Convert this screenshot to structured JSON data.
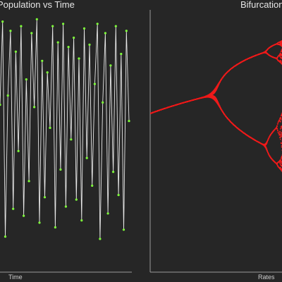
{
  "colors": {
    "background": "#262626",
    "series_line": "#e8e8e8",
    "series_point": "#7fff3a",
    "bifurcation": "#ee1c1c",
    "axis": "#9a9a9a",
    "text": "#e6e6e6"
  },
  "chart_data": [
    {
      "type": "line",
      "title": "Population vs Time",
      "xlabel": "Time",
      "ylabel": "",
      "grid": false,
      "legend": "none",
      "ylim": [
        0,
        1
      ],
      "series": [
        {
          "values": [
            0.62,
            0.98,
            0.05,
            0.66,
            0.94,
            0.17,
            0.85,
            0.42,
            0.96,
            0.14,
            0.73,
            0.29,
            0.93,
            0.61,
            0.99,
            0.11,
            0.81,
            0.22,
            0.76,
            0.52,
            0.96,
            0.09,
            0.89,
            0.34,
            0.97,
            0.18,
            0.87,
            0.47,
            0.91,
            0.21,
            0.82,
            0.12,
            0.95,
            0.39,
            0.88,
            0.27,
            0.71,
            0.97,
            0.04,
            0.63,
            0.93,
            0.15,
            0.79,
            0.33,
            0.96,
            0.23,
            0.84,
            0.08,
            0.94,
            0.55
          ]
        }
      ]
    },
    {
      "type": "scatter",
      "title": "Bifurcation Diagram",
      "xlabel": "Rates",
      "ylabel": "",
      "grid": false,
      "legend": "none",
      "xlim": [
        2.4,
        3.6
      ],
      "ylim": [
        0,
        1
      ]
    }
  ]
}
